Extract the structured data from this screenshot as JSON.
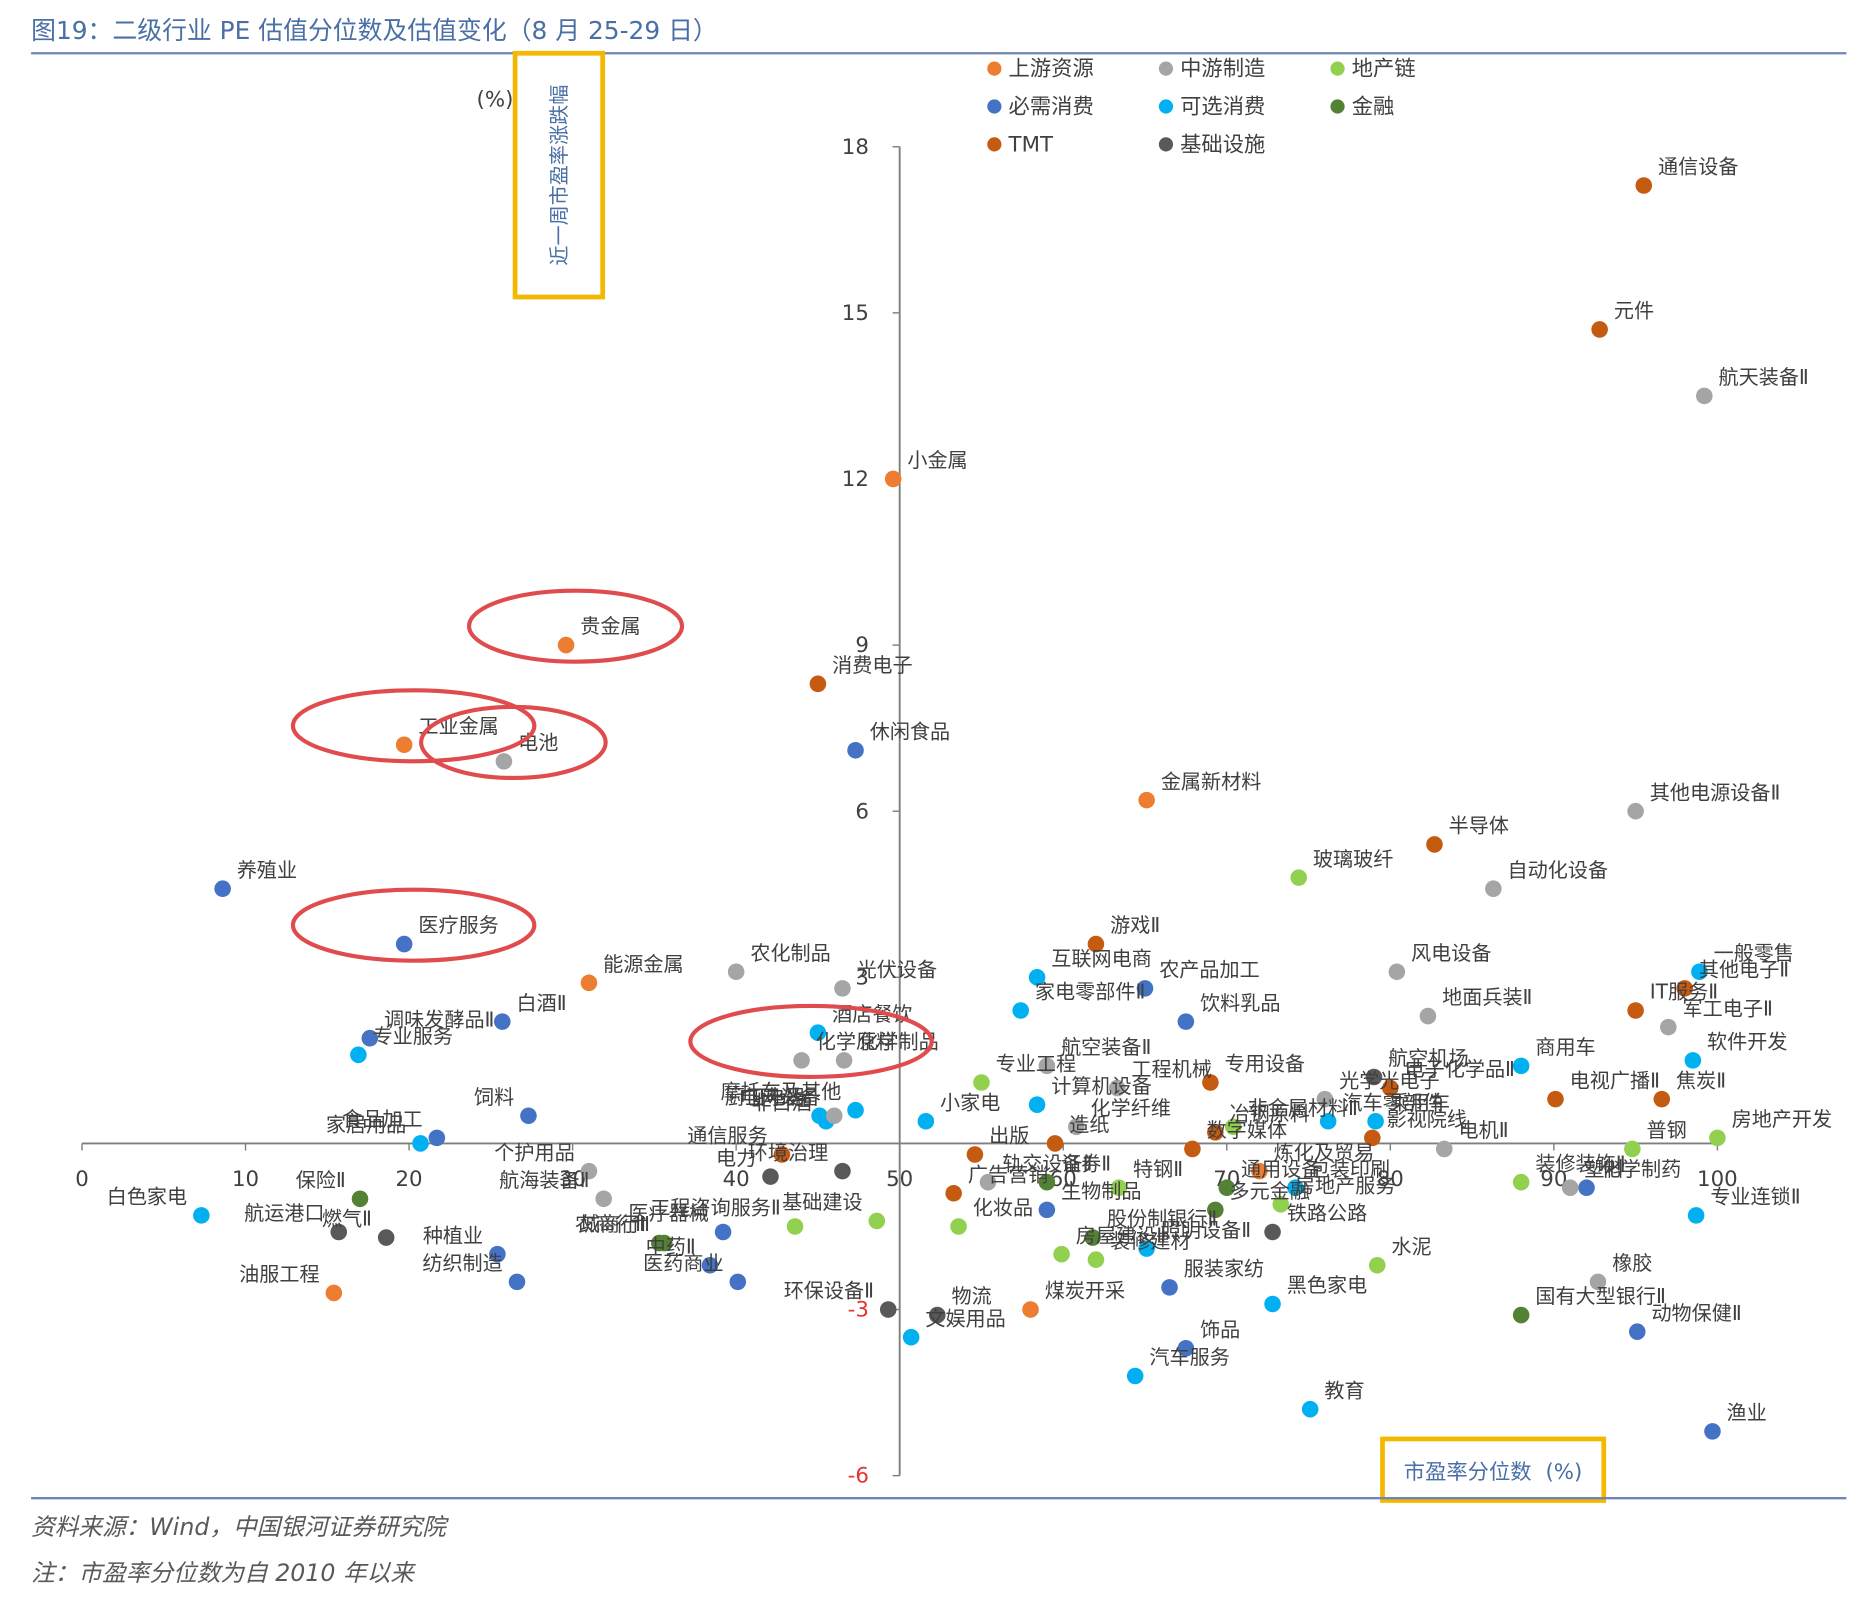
{
  "figure": {
    "title": "图19：二级行业 PE 估值分位数及估值变化（8 月 25-29 日）",
    "source": "资料来源：Wind，中国银河证券研究院",
    "note": "注：市盈率分位数为自 2010 年以来"
  },
  "colors": {
    "title": "#4a6fa5",
    "rule": "#6f86b5",
    "axis": "#7f7f7f",
    "label": "#404040",
    "negative_tick": "#e3342f",
    "highlight_circle": "#e04b4e",
    "highlight_box": "#f5b800",
    "footer": "#595959"
  },
  "chart_data": {
    "type": "scatter",
    "xlabel": "市盈率分位数",
    "xunit": "(%)",
    "ylabel": "近一周市盈率涨跌幅",
    "yunit": "(%)",
    "xlim": [
      0,
      100
    ],
    "ylim": [
      -6,
      18
    ],
    "xticks": [
      0,
      10,
      20,
      30,
      40,
      50,
      60,
      70,
      80,
      90,
      100
    ],
    "yticks": [
      -6,
      -3,
      3,
      6,
      9,
      12,
      15,
      18
    ],
    "legend_position": "top",
    "groups": [
      {
        "name": "上游资源",
        "color": "#ed7d31"
      },
      {
        "name": "中游制造",
        "color": "#a5a5a5"
      },
      {
        "name": "地产链",
        "color": "#92d050"
      },
      {
        "name": "必需消费",
        "color": "#4472c4"
      },
      {
        "name": "可选消费",
        "color": "#00b0f0"
      },
      {
        "name": "金融",
        "color": "#548235"
      },
      {
        "name": "TMT",
        "color": "#c55a11"
      },
      {
        "name": "基础设施",
        "color": "#595959"
      }
    ],
    "points": [
      {
        "label": "通信设备",
        "group": "TMT",
        "x": 95.5,
        "y": 17.3
      },
      {
        "label": "元件",
        "group": "TMT",
        "x": 92.8,
        "y": 14.7
      },
      {
        "label": "航天装备Ⅱ",
        "group": "中游制造",
        "x": 99.2,
        "y": 13.5
      },
      {
        "label": "小金属",
        "group": "上游资源",
        "x": 49.6,
        "y": 12.0
      },
      {
        "label": "贵金属",
        "group": "上游资源",
        "x": 29.6,
        "y": 9.0
      },
      {
        "label": "消费电子",
        "group": "TMT",
        "x": 45.0,
        "y": 8.3
      },
      {
        "label": "工业金属",
        "group": "上游资源",
        "x": 19.7,
        "y": 7.2
      },
      {
        "label": "休闲食品",
        "group": "必需消费",
        "x": 47.3,
        "y": 7.1
      },
      {
        "label": "电池",
        "group": "中游制造",
        "x": 25.8,
        "y": 6.9
      },
      {
        "label": "金属新材料",
        "group": "上游资源",
        "x": 65.1,
        "y": 6.2
      },
      {
        "label": "其他电源设备Ⅱ",
        "group": "中游制造",
        "x": 95.0,
        "y": 6.0
      },
      {
        "label": "半导体",
        "group": "TMT",
        "x": 82.7,
        "y": 5.4
      },
      {
        "label": "玻璃玻纤",
        "group": "地产链",
        "x": 74.4,
        "y": 4.8
      },
      {
        "label": "自动化设备",
        "group": "中游制造",
        "x": 86.3,
        "y": 4.6
      },
      {
        "label": "养殖业",
        "group": "必需消费",
        "x": 8.6,
        "y": 4.6
      },
      {
        "label": "医疗服务",
        "group": "必需消费",
        "x": 19.7,
        "y": 3.6
      },
      {
        "label": "游戏Ⅱ",
        "group": "TMT",
        "x": 62.0,
        "y": 3.6
      },
      {
        "label": "能源金属",
        "group": "上游资源",
        "x": 31.0,
        "y": 2.9
      },
      {
        "label": "农化制品",
        "group": "中游制造",
        "x": 40.0,
        "y": 3.1
      },
      {
        "label": "光伏设备",
        "group": "中游制造",
        "x": 46.5,
        "y": 2.8
      },
      {
        "label": "互联网电商",
        "group": "可选消费",
        "x": 58.4,
        "y": 3.0
      },
      {
        "label": "农产品加工",
        "group": "必需消费",
        "x": 65.0,
        "y": 2.8
      },
      {
        "label": "风电设备",
        "group": "中游制造",
        "x": 80.4,
        "y": 3.1
      },
      {
        "label": "一般零售",
        "group": "可选消费",
        "x": 98.9,
        "y": 3.1
      },
      {
        "label": "其他电子Ⅱ",
        "group": "TMT",
        "x": 98.0,
        "y": 2.8
      },
      {
        "label": "地面兵装Ⅱ",
        "group": "中游制造",
        "x": 82.3,
        "y": 2.3
      },
      {
        "label": "饮料乳品",
        "group": "必需消费",
        "x": 67.5,
        "y": 2.2
      },
      {
        "label": "白酒Ⅱ",
        "group": "必需消费",
        "x": 25.7,
        "y": 2.2
      },
      {
        "label": "IT服务Ⅱ",
        "group": "TMT",
        "x": 95.0,
        "y": 2.4
      },
      {
        "label": "调味发酵品Ⅱ",
        "group": "必需消费",
        "x": 17.6,
        "y": 1.9
      },
      {
        "label": "酒店餐饮",
        "group": "可选消费",
        "x": 45.0,
        "y": 2.0
      },
      {
        "label": "家电零部件Ⅱ",
        "group": "可选消费",
        "x": 57.4,
        "y": 2.4
      },
      {
        "label": "军工电子Ⅱ",
        "group": "中游制造",
        "x": 97.0,
        "y": 2.1
      },
      {
        "label": "专业服务",
        "group": "可选消费",
        "x": 16.9,
        "y": 1.6
      },
      {
        "label": "化学原料",
        "group": "中游制造",
        "x": 44.0,
        "y": 1.5
      },
      {
        "label": "化学制品",
        "group": "中游制造",
        "x": 46.6,
        "y": 1.5
      },
      {
        "label": "航空装备Ⅱ",
        "group": "中游制造",
        "x": 59.0,
        "y": 1.4
      },
      {
        "label": "商用车",
        "group": "可选消费",
        "x": 88.0,
        "y": 1.4
      },
      {
        "label": "软件开发",
        "group": "可选消费",
        "x": 98.5,
        "y": 1.5
      },
      {
        "label": "航空机场",
        "group": "基础设施",
        "x": 79.0,
        "y": 1.2
      },
      {
        "label": "电子化学品Ⅱ",
        "group": "TMT",
        "x": 80.0,
        "y": 1.0
      },
      {
        "label": "专用设备",
        "group": "TMT",
        "x": 69.0,
        "y": 1.1
      },
      {
        "label": "工程机械",
        "group": "中游制造",
        "x": 63.3,
        "y": 1.0
      },
      {
        "label": "专业工程",
        "group": "地产链",
        "x": 55.0,
        "y": 1.1
      },
      {
        "label": "光学光电子",
        "group": "中游制造",
        "x": 76.0,
        "y": 0.8
      },
      {
        "label": "焦炭Ⅱ",
        "group": "TMT",
        "x": 96.6,
        "y": 0.8
      },
      {
        "label": "饲料",
        "group": "必需消费",
        "x": 27.3,
        "y": 0.5
      },
      {
        "label": "食品加工",
        "group": "必需消费",
        "x": 21.7,
        "y": 0.1
      },
      {
        "label": "家居用品",
        "group": "可选消费",
        "x": 20.7,
        "y": 0.0
      },
      {
        "label": "厨卫电器",
        "group": "可选消费",
        "x": 45.1,
        "y": 0.5
      },
      {
        "label": "摩托车及其他",
        "group": "可选消费",
        "x": 47.3,
        "y": 0.6
      },
      {
        "label": "小家电",
        "group": "可选消费",
        "x": 51.6,
        "y": 0.4
      },
      {
        "label": "非白酒",
        "group": "可选消费",
        "x": 45.5,
        "y": 0.4
      },
      {
        "label": "电网设备",
        "group": "中游制造",
        "x": 46.0,
        "y": 0.5
      },
      {
        "label": "计算机设备",
        "group": "可选消费",
        "x": 58.4,
        "y": 0.7
      },
      {
        "label": "化学纤维",
        "group": "中游制造",
        "x": 60.8,
        "y": 0.3
      },
      {
        "label": "非金属材料Ⅱ",
        "group": "地产链",
        "x": 70.4,
        "y": 0.3
      },
      {
        "label": "汽车零部件",
        "group": "可选消费",
        "x": 76.2,
        "y": 0.4
      },
      {
        "label": "乘用车",
        "group": "可选消费",
        "x": 79.1,
        "y": 0.4
      },
      {
        "label": "电视广播Ⅱ",
        "group": "TMT",
        "x": 90.1,
        "y": 0.8
      },
      {
        "label": "影视院线",
        "group": "TMT",
        "x": 78.9,
        "y": 0.1
      },
      {
        "label": "冶钢原料",
        "group": "TMT",
        "x": 69.3,
        "y": 0.2
      },
      {
        "label": "出版",
        "group": "TMT",
        "x": 54.6,
        "y": -0.2
      },
      {
        "label": "造纸",
        "group": "TMT",
        "x": 59.5,
        "y": 0.0
      },
      {
        "label": "数字媒体",
        "group": "TMT",
        "x": 67.9,
        "y": -0.1
      },
      {
        "label": "炼化及贸易",
        "group": "上游资源",
        "x": 72.0,
        "y": -0.5
      },
      {
        "label": "电机Ⅱ",
        "group": "中游制造",
        "x": 83.3,
        "y": -0.1
      },
      {
        "label": "普钢",
        "group": "地产链",
        "x": 94.8,
        "y": -0.1
      },
      {
        "label": "房地产开发",
        "group": "地产链",
        "x": 100.0,
        "y": 0.1
      },
      {
        "label": "通信服务",
        "group": "TMT",
        "x": 42.8,
        "y": -0.2
      },
      {
        "label": "环境治理",
        "group": "基础设施",
        "x": 46.5,
        "y": -0.5
      },
      {
        "label": "个护用品",
        "group": "中游制造",
        "x": 31.0,
        "y": -0.5
      },
      {
        "label": "电力",
        "group": "基础设施",
        "x": 42.1,
        "y": -0.6
      },
      {
        "label": "轨交设备Ⅱ",
        "group": "中游制造",
        "x": 55.4,
        "y": -0.7
      },
      {
        "label": "证券Ⅱ",
        "group": "金融",
        "x": 59.0,
        "y": -0.7
      },
      {
        "label": "特钢Ⅱ",
        "group": "地产链",
        "x": 63.4,
        "y": -0.8
      },
      {
        "label": "通用设备",
        "group": "金融",
        "x": 70.0,
        "y": -0.8
      },
      {
        "label": "包装印刷",
        "group": "可选消费",
        "x": 74.2,
        "y": -0.8
      },
      {
        "label": "装修装饰Ⅱ",
        "group": "地产链",
        "x": 88.0,
        "y": -0.7
      },
      {
        "label": "化学制药",
        "group": "必需消费",
        "x": 92.0,
        "y": -0.8
      },
      {
        "label": "塑料",
        "group": "中游制造",
        "x": 91.0,
        "y": -0.8
      },
      {
        "label": "保险Ⅱ",
        "group": "金融",
        "x": 17.0,
        "y": -1.0
      },
      {
        "label": "广告营销",
        "group": "TMT",
        "x": 53.3,
        "y": -0.9
      },
      {
        "label": "生物制品",
        "group": "必需消费",
        "x": 59.0,
        "y": -1.2
      },
      {
        "label": "多元金融",
        "group": "金融",
        "x": 69.3,
        "y": -1.2
      },
      {
        "label": "房地产服务",
        "group": "地产链",
        "x": 73.3,
        "y": -1.1
      },
      {
        "label": "航海装备Ⅱ",
        "group": "中游制造",
        "x": 31.9,
        "y": -1.0
      },
      {
        "label": "白色家电",
        "group": "可选消费",
        "x": 7.3,
        "y": -1.3
      },
      {
        "label": "专业连锁Ⅱ",
        "group": "可选消费",
        "x": 98.7,
        "y": -1.3
      },
      {
        "label": "基础建设",
        "group": "地产链",
        "x": 48.6,
        "y": -1.4
      },
      {
        "label": "化妆品",
        "group": "地产链",
        "x": 53.6,
        "y": -1.5
      },
      {
        "label": "工程咨询服务Ⅱ",
        "group": "地产链",
        "x": 43.6,
        "y": -1.5
      },
      {
        "label": "医疗器械",
        "group": "必需消费",
        "x": 39.2,
        "y": -1.6
      },
      {
        "label": "城商行Ⅱ",
        "group": "金融",
        "x": 35.6,
        "y": -1.8
      },
      {
        "label": "航运港口",
        "group": "基础设施",
        "x": 15.7,
        "y": -1.6
      },
      {
        "label": "燃气Ⅱ",
        "group": "基础设施",
        "x": 18.6,
        "y": -1.7
      },
      {
        "label": "股份制银行Ⅱ",
        "group": "金融",
        "x": 61.8,
        "y": -1.7
      },
      {
        "label": "照明设备Ⅱ",
        "group": "可选消费",
        "x": 65.1,
        "y": -1.9
      },
      {
        "label": "铁路公路",
        "group": "基础设施",
        "x": 72.8,
        "y": -1.6
      },
      {
        "label": "种植业",
        "group": "必需消费",
        "x": 25.4,
        "y": -2.0
      },
      {
        "label": "房屋建设Ⅱ",
        "group": "地产链",
        "x": 59.9,
        "y": -2.0
      },
      {
        "label": "农商行Ⅱ",
        "group": "金融",
        "x": 35.3,
        "y": -1.8
      },
      {
        "label": "中药Ⅱ",
        "group": "必需消费",
        "x": 38.4,
        "y": -2.2
      },
      {
        "label": "装修建材",
        "group": "地产链",
        "x": 62.0,
        "y": -2.1
      },
      {
        "label": "水泥",
        "group": "地产链",
        "x": 79.2,
        "y": -2.2
      },
      {
        "label": "纺织制造",
        "group": "必需消费",
        "x": 26.6,
        "y": -2.5
      },
      {
        "label": "医药商业",
        "group": "必需消费",
        "x": 40.1,
        "y": -2.5
      },
      {
        "label": "油服工程",
        "group": "上游资源",
        "x": 15.4,
        "y": -2.7
      },
      {
        "label": "橡胶",
        "group": "中游制造",
        "x": 92.7,
        "y": -2.5
      },
      {
        "label": "服装家纺",
        "group": "必需消费",
        "x": 66.5,
        "y": -2.6
      },
      {
        "label": "黑色家电",
        "group": "可选消费",
        "x": 72.8,
        "y": -2.9
      },
      {
        "label": "环保设备Ⅱ",
        "group": "基础设施",
        "x": 49.3,
        "y": -3.0
      },
      {
        "label": "物流",
        "group": "基础设施",
        "x": 52.3,
        "y": -3.1
      },
      {
        "label": "煤炭开采",
        "group": "上游资源",
        "x": 58.0,
        "y": -3.0
      },
      {
        "label": "国有大型银行Ⅱ",
        "group": "金融",
        "x": 88.0,
        "y": -3.1
      },
      {
        "label": "动物保健Ⅱ",
        "group": "必需消费",
        "x": 95.1,
        "y": -3.4
      },
      {
        "label": "文娱用品",
        "group": "可选消费",
        "x": 50.7,
        "y": -3.5
      },
      {
        "label": "饰品",
        "group": "必需消费",
        "x": 67.5,
        "y": -3.7
      },
      {
        "label": "汽车服务",
        "group": "可选消费",
        "x": 64.4,
        "y": -4.2
      },
      {
        "label": "教育",
        "group": "可选消费",
        "x": 75.1,
        "y": -4.8
      },
      {
        "label": "渔业",
        "group": "必需消费",
        "x": 99.7,
        "y": -5.2
      }
    ],
    "highlighted": [
      "贵金属",
      "工业金属",
      "电池",
      "医疗服务",
      "化学原料"
    ],
    "highlighted_axis_labels": [
      "ylabel",
      "xlabel"
    ]
  }
}
